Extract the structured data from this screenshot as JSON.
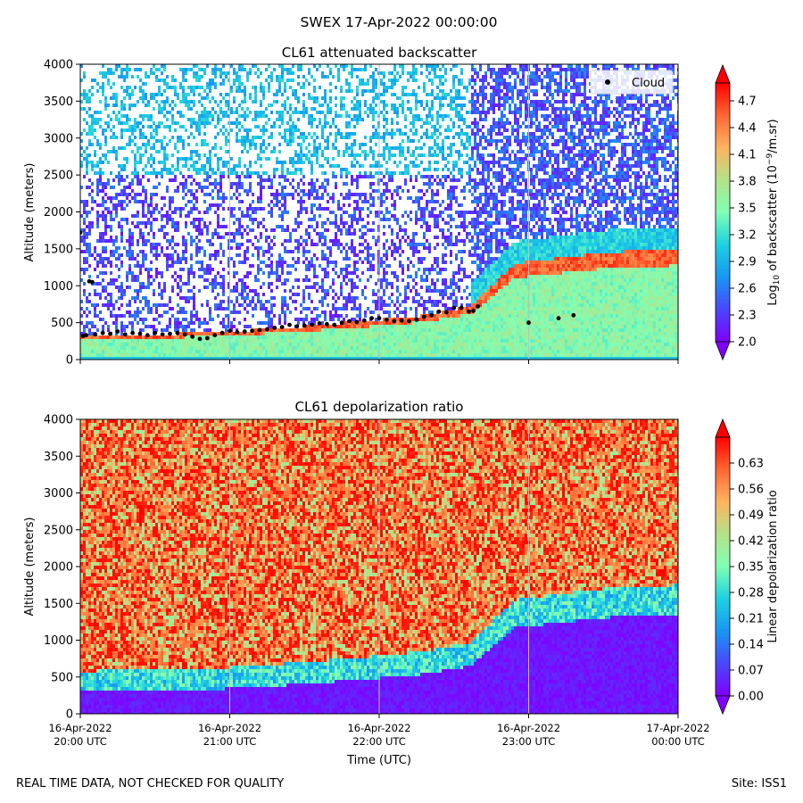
{
  "figure": {
    "suptitle": "SWEX 17-Apr-2022 00:00:00",
    "footer_left": "REAL TIME DATA, NOT CHECKED FOR QUALITY",
    "footer_right": "Site: ISS1"
  },
  "chart_data": [
    {
      "type": "heatmap",
      "title": "CL61 attenuated backscatter",
      "ylabel": "Altitude (meters)",
      "xlabel": "",
      "ylim": [
        0,
        4000
      ],
      "yticks": [
        "0",
        "500",
        "1000",
        "1500",
        "2000",
        "2500",
        "3000",
        "3500",
        "4000"
      ],
      "xlim_hours_utc": [
        20.0,
        24.0
      ],
      "colorbar": {
        "label_parts": [
          "Log",
          "10",
          " of backscatter (10",
          "−9",
          "/m.sr)"
        ],
        "range": [
          2.0,
          4.9
        ],
        "ticks": [
          "2.0",
          "2.3",
          "2.6",
          "2.9",
          "3.2",
          "3.5",
          "3.8",
          "4.1",
          "4.4",
          "4.7"
        ],
        "colormap": "rainbow"
      },
      "legend": {
        "label": "Cloud",
        "position": "upper-right"
      },
      "cloud_base_series": {
        "name": "Cloud",
        "x_hours": [
          20.0,
          20.02,
          20.04,
          20.06,
          20.08,
          20.1,
          20.15,
          20.2,
          20.25,
          20.3,
          20.35,
          20.4,
          20.45,
          20.5,
          20.55,
          20.6,
          20.65,
          20.7,
          20.75,
          20.8,
          20.85,
          20.9,
          20.95,
          21.0,
          21.05,
          21.1,
          21.15,
          21.2,
          21.25,
          21.3,
          21.35,
          21.4,
          21.45,
          21.5,
          21.55,
          21.6,
          21.65,
          21.7,
          21.75,
          21.8,
          21.85,
          21.9,
          21.95,
          22.0,
          22.05,
          22.1,
          22.15,
          22.2,
          22.25,
          22.3,
          22.35,
          22.4,
          22.45,
          22.5,
          22.55,
          22.6,
          22.63,
          22.66,
          23.0,
          23.2,
          23.3
        ],
        "altitude_m": [
          1720,
          320,
          330,
          1060,
          1050,
          340,
          360,
          350,
          380,
          340,
          360,
          350,
          330,
          360,
          340,
          350,
          360,
          340,
          310,
          280,
          290,
          330,
          360,
          390,
          370,
          380,
          390,
          400,
          410,
          430,
          440,
          470,
          450,
          460,
          470,
          490,
          480,
          470,
          500,
          520,
          510,
          530,
          560,
          560,
          540,
          520,
          530,
          520,
          540,
          580,
          600,
          650,
          640,
          700,
          700,
          650,
          660,
          720,
          500,
          560,
          600
        ]
      },
      "description_profile": {
        "x_hours": [
          20.0,
          20.5,
          21.0,
          21.5,
          22.0,
          22.3,
          22.6,
          22.9,
          23.5,
          24.0
        ],
        "boundary_layer_top_m": [
          330,
          340,
          380,
          450,
          540,
          600,
          720,
          1300,
          1450,
          1500
        ],
        "noise_top_m": [
          4000,
          4000,
          4000,
          4000,
          4000,
          4000,
          4000,
          4000,
          4000,
          4000
        ]
      }
    },
    {
      "type": "heatmap",
      "title": "CL61 depolarization ratio",
      "ylabel": "Altitude (meters)",
      "xlabel": "Time (UTC)",
      "ylim": [
        0,
        4000
      ],
      "yticks": [
        "0",
        "500",
        "1000",
        "1500",
        "2000",
        "2500",
        "3000",
        "3500",
        "4000"
      ],
      "xticks": [
        {
          "date": "16-Apr-2022",
          "time": "20:00 UTC"
        },
        {
          "date": "16-Apr-2022",
          "time": "21:00 UTC"
        },
        {
          "date": "16-Apr-2022",
          "time": "22:00 UTC"
        },
        {
          "date": "16-Apr-2022",
          "time": "23:00 UTC"
        },
        {
          "date": "17-Apr-2022",
          "time": "00:00 UTC"
        }
      ],
      "colorbar": {
        "label": "Linear depolarization ratio",
        "range": [
          0.0,
          0.7
        ],
        "ticks": [
          "0.00",
          "0.07",
          "0.14",
          "0.21",
          "0.28",
          "0.35",
          "0.42",
          "0.49",
          "0.56",
          "0.63"
        ],
        "colormap": "rainbow"
      }
    }
  ]
}
